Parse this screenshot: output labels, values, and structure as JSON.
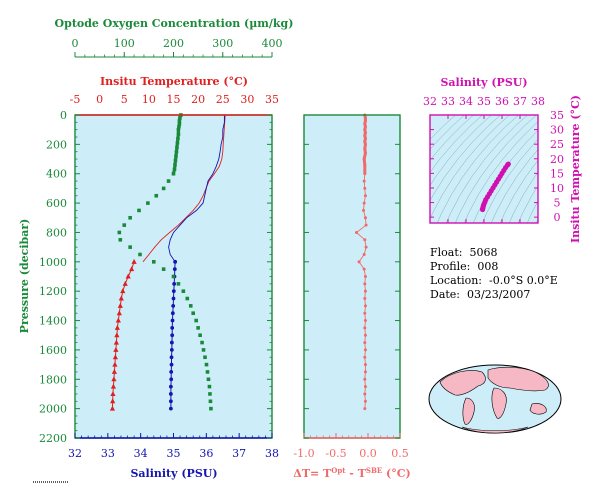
{
  "colors": {
    "oxygen": "#1a8a3a",
    "temperature": "#e02020",
    "salinity": "#1515b0",
    "delta_t": "#f06a6a",
    "ts": "#d010b0",
    "panel_bg": "#cdeef8",
    "map_land": "#f5b8c4"
  },
  "info": {
    "float_label": "Float:",
    "float_value": "5068",
    "profile_label": "Profile:",
    "profile_value": "008",
    "location_label": "Location:",
    "location_value": "-0.0°S   0.0°E",
    "date_label": "Date:",
    "date_value": "03/23/2007"
  },
  "chart_data": [
    {
      "type": "line",
      "name": "profile-panel",
      "ylabel": "Pressure (decibar)",
      "ylim": [
        0,
        2200
      ],
      "yticks": [
        "0",
        "200",
        "400",
        "600",
        "800",
        "1000",
        "1200",
        "1400",
        "1600",
        "1800",
        "2000",
        "2200"
      ],
      "axes": {
        "oxygen": {
          "label": "Optode Oxygen Concentration (µm/kg)",
          "range": [
            0,
            400
          ],
          "ticks": [
            "0",
            "100",
            "200",
            "300",
            "400"
          ]
        },
        "temperature": {
          "label": "Insitu Temperature (°C)",
          "range": [
            -5,
            35
          ],
          "ticks": [
            "-5",
            "0",
            "5",
            "10",
            "15",
            "20",
            "25",
            "30",
            "35"
          ]
        },
        "salinity": {
          "label": "Salinity (PSU)",
          "range": [
            32,
            38
          ],
          "ticks": [
            "32",
            "33",
            "34",
            "35",
            "36",
            "37",
            "38"
          ]
        }
      },
      "series": {
        "temperature_line": [
          [
            25.5,
            0
          ],
          [
            25.4,
            50
          ],
          [
            25.3,
            100
          ],
          [
            25.2,
            150
          ],
          [
            25.1,
            200
          ],
          [
            25.0,
            250
          ],
          [
            24.8,
            300
          ],
          [
            24.3,
            350
          ],
          [
            23.3,
            400
          ],
          [
            22.2,
            450
          ],
          [
            21.6,
            500
          ],
          [
            21.0,
            550
          ],
          [
            20.2,
            600
          ],
          [
            19.0,
            650
          ],
          [
            17.5,
            700
          ],
          [
            16.0,
            750
          ],
          [
            14.2,
            800
          ],
          [
            12.5,
            850
          ],
          [
            11.2,
            900
          ],
          [
            10.0,
            950
          ],
          [
            8.8,
            1000
          ]
        ],
        "salinity_line": [
          [
            36.55,
            0
          ],
          [
            36.55,
            50
          ],
          [
            36.5,
            100
          ],
          [
            36.5,
            150
          ],
          [
            36.45,
            200
          ],
          [
            36.42,
            250
          ],
          [
            36.38,
            300
          ],
          [
            36.3,
            350
          ],
          [
            36.2,
            400
          ],
          [
            36.05,
            450
          ],
          [
            36.0,
            500
          ],
          [
            35.95,
            550
          ],
          [
            35.9,
            600
          ],
          [
            35.7,
            650
          ],
          [
            35.4,
            700
          ],
          [
            35.2,
            750
          ],
          [
            35.0,
            800
          ],
          [
            34.9,
            850
          ],
          [
            34.85,
            900
          ],
          [
            34.9,
            950
          ],
          [
            35.05,
            1000
          ]
        ],
        "temperature_deep": [
          [
            7.0,
            1000
          ],
          [
            6.5,
            1050
          ],
          [
            5.8,
            1100
          ],
          [
            5.2,
            1150
          ],
          [
            4.7,
            1200
          ],
          [
            4.4,
            1250
          ],
          [
            4.2,
            1300
          ],
          [
            4.0,
            1350
          ],
          [
            3.8,
            1400
          ],
          [
            3.6,
            1450
          ],
          [
            3.5,
            1500
          ],
          [
            3.4,
            1550
          ],
          [
            3.3,
            1600
          ],
          [
            3.2,
            1650
          ],
          [
            3.1,
            1700
          ],
          [
            3.0,
            1750
          ],
          [
            2.9,
            1800
          ],
          [
            2.8,
            1850
          ],
          [
            2.7,
            1900
          ],
          [
            2.65,
            1950
          ],
          [
            2.6,
            2000
          ]
        ],
        "salinity_deep": [
          [
            35.05,
            1000
          ],
          [
            35.04,
            1050
          ],
          [
            35.03,
            1100
          ],
          [
            35.02,
            1150
          ],
          [
            35.01,
            1200
          ],
          [
            35.0,
            1250
          ],
          [
            34.99,
            1300
          ],
          [
            34.98,
            1350
          ],
          [
            34.97,
            1400
          ],
          [
            34.96,
            1450
          ],
          [
            34.96,
            1500
          ],
          [
            34.95,
            1550
          ],
          [
            34.95,
            1600
          ],
          [
            34.94,
            1650
          ],
          [
            34.94,
            1700
          ],
          [
            34.93,
            1750
          ],
          [
            34.93,
            1800
          ],
          [
            34.92,
            1850
          ],
          [
            34.92,
            1900
          ],
          [
            34.92,
            1950
          ],
          [
            34.92,
            2000
          ]
        ],
        "oxygen": [
          [
            215,
            0
          ],
          [
            213,
            20
          ],
          [
            212,
            40
          ],
          [
            212,
            60
          ],
          [
            211,
            80
          ],
          [
            210,
            100
          ],
          [
            210,
            130
          ],
          [
            209,
            160
          ],
          [
            208,
            190
          ],
          [
            207,
            220
          ],
          [
            206,
            250
          ],
          [
            205,
            280
          ],
          [
            204,
            310
          ],
          [
            203,
            340
          ],
          [
            202,
            370
          ],
          [
            200,
            400
          ],
          [
            190,
            450
          ],
          [
            180,
            500
          ],
          [
            165,
            550
          ],
          [
            148,
            600
          ],
          [
            130,
            650
          ],
          [
            112,
            700
          ],
          [
            100,
            750
          ],
          [
            90,
            800
          ],
          [
            92,
            850
          ],
          [
            112,
            900
          ],
          [
            132,
            950
          ],
          [
            160,
            1000
          ],
          [
            180,
            1050
          ],
          [
            200,
            1100
          ],
          [
            210,
            1150
          ],
          [
            220,
            1200
          ],
          [
            228,
            1250
          ],
          [
            235,
            1300
          ],
          [
            240,
            1350
          ],
          [
            246,
            1400
          ],
          [
            250,
            1450
          ],
          [
            254,
            1500
          ],
          [
            258,
            1550
          ],
          [
            261,
            1600
          ],
          [
            264,
            1650
          ],
          [
            267,
            1700
          ],
          [
            269,
            1750
          ],
          [
            271,
            1800
          ],
          [
            273,
            1850
          ],
          [
            274,
            1900
          ],
          [
            275,
            1950
          ],
          [
            276,
            2000
          ]
        ]
      }
    },
    {
      "type": "line",
      "name": "delta-t-panel",
      "xlabel": "ΔT= T^Opt - T^SBE (°C)",
      "xlim": [
        -1.0,
        0.5
      ],
      "xticks": [
        "-1.0",
        "-0.5",
        "0.0",
        "0.5"
      ],
      "ylim": [
        0,
        2200
      ],
      "series": [
        {
          "name": "delta-t",
          "points": [
            [
              -0.05,
              0
            ],
            [
              -0.04,
              20
            ],
            [
              -0.04,
              40
            ],
            [
              -0.05,
              60
            ],
            [
              -0.04,
              80
            ],
            [
              -0.05,
              100
            ],
            [
              -0.04,
              120
            ],
            [
              -0.05,
              140
            ],
            [
              -0.04,
              160
            ],
            [
              -0.05,
              180
            ],
            [
              -0.04,
              200
            ],
            [
              -0.05,
              230
            ],
            [
              -0.04,
              260
            ],
            [
              -0.06,
              300
            ],
            [
              -0.05,
              340
            ],
            [
              -0.05,
              400
            ],
            [
              -0.06,
              450
            ],
            [
              -0.05,
              500
            ],
            [
              -0.04,
              550
            ],
            [
              -0.06,
              600
            ],
            [
              -0.07,
              650
            ],
            [
              -0.04,
              700
            ],
            [
              -0.03,
              750
            ],
            [
              -0.18,
              800
            ],
            [
              -0.05,
              850
            ],
            [
              -0.03,
              900
            ],
            [
              -0.06,
              950
            ],
            [
              -0.14,
              1000
            ],
            [
              -0.06,
              1050
            ],
            [
              -0.04,
              1100
            ],
            [
              -0.05,
              1150
            ],
            [
              -0.04,
              1200
            ],
            [
              -0.05,
              1250
            ],
            [
              -0.04,
              1300
            ],
            [
              -0.05,
              1350
            ],
            [
              -0.04,
              1400
            ],
            [
              -0.05,
              1450
            ],
            [
              -0.04,
              1500
            ],
            [
              -0.05,
              1550
            ],
            [
              -0.04,
              1600
            ],
            [
              -0.05,
              1650
            ],
            [
              -0.04,
              1700
            ],
            [
              -0.04,
              1750
            ],
            [
              -0.05,
              1800
            ],
            [
              -0.04,
              1850
            ],
            [
              -0.05,
              1900
            ],
            [
              -0.04,
              1950
            ],
            [
              -0.05,
              2000
            ]
          ]
        }
      ]
    },
    {
      "type": "scatter",
      "name": "ts-diagram",
      "xlabel": "Salinity (PSU)",
      "ylabel": "Insitu Temperature (°C)",
      "xlim": [
        32,
        38
      ],
      "ylim": [
        -2,
        35
      ],
      "xticks": [
        "32",
        "33",
        "34",
        "35",
        "36",
        "37",
        "38"
      ],
      "yticks": [
        "0",
        "5",
        "10",
        "15",
        "20",
        "25",
        "30",
        "35"
      ],
      "points": [
        [
          34.92,
          2.6
        ],
        [
          34.93,
          3.0
        ],
        [
          34.95,
          3.5
        ],
        [
          34.97,
          4.0
        ],
        [
          35.0,
          4.5
        ],
        [
          35.05,
          5.2
        ],
        [
          35.1,
          6.0
        ],
        [
          35.2,
          7.0
        ],
        [
          35.3,
          8.0
        ],
        [
          35.4,
          9.0
        ],
        [
          35.5,
          10.0
        ],
        [
          35.6,
          11.0
        ],
        [
          35.7,
          12.0
        ],
        [
          35.8,
          13.0
        ],
        [
          35.9,
          14.0
        ],
        [
          36.0,
          15.0
        ],
        [
          36.1,
          16.0
        ],
        [
          36.2,
          17.0
        ],
        [
          36.3,
          17.8
        ],
        [
          36.35,
          18.2
        ]
      ]
    }
  ]
}
